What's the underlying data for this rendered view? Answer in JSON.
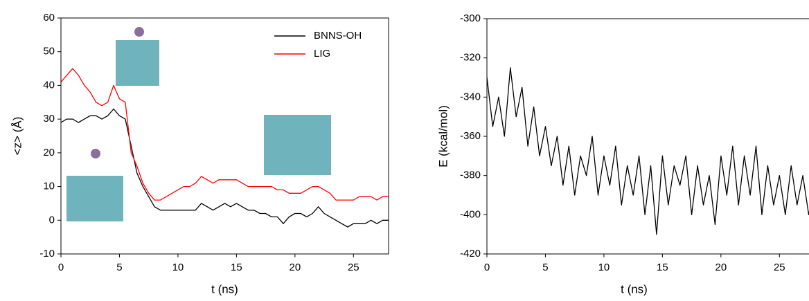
{
  "chart_data": [
    {
      "type": "line",
      "xlabel": "t (ns)",
      "ylabel": "<z> (Å)",
      "xlim": [
        0,
        28
      ],
      "ylim": [
        -10,
        60
      ],
      "xticks": [
        0,
        5,
        10,
        15,
        20,
        25
      ],
      "yticks": [
        -10,
        0,
        10,
        20,
        30,
        40,
        50,
        60
      ],
      "legend": "upper right",
      "x": [
        0,
        0.5,
        1,
        1.5,
        2,
        2.5,
        3,
        3.5,
        4,
        4.5,
        5,
        5.5,
        6,
        6.5,
        7,
        7.5,
        8,
        8.5,
        9,
        9.5,
        10,
        10.5,
        11,
        11.5,
        12,
        12.5,
        13,
        13.5,
        14,
        14.5,
        15,
        15.5,
        16,
        16.5,
        17,
        17.5,
        18,
        18.5,
        19,
        19.5,
        20,
        20.5,
        21,
        21.5,
        22,
        22.5,
        23,
        23.5,
        24,
        24.5,
        25,
        25.5,
        26,
        26.5,
        27,
        27.5,
        28
      ],
      "series": [
        {
          "name": "BNNS-OH",
          "color": "#000000",
          "values": [
            29,
            30,
            30,
            29,
            30,
            31,
            31,
            30,
            31,
            33,
            31,
            30,
            22,
            14,
            10,
            7,
            4,
            3,
            3,
            3,
            3,
            3,
            3,
            3,
            5,
            4,
            3,
            4,
            5,
            4,
            5,
            4,
            3,
            3,
            2,
            2,
            1,
            1,
            -1,
            1,
            2,
            2,
            1,
            2,
            4,
            2,
            1,
            0,
            -1,
            -2,
            -1,
            -1,
            -1,
            0,
            -1,
            0,
            0
          ]
        },
        {
          "name": "LIG",
          "color": "#ff0000",
          "values": [
            41,
            43,
            45,
            43,
            40,
            38,
            35,
            34,
            35,
            40,
            36,
            35,
            20,
            16,
            11,
            8,
            6,
            6,
            7,
            8,
            9,
            10,
            10,
            11,
            13,
            12,
            11,
            12,
            12,
            12,
            12,
            11,
            10,
            10,
            10,
            10,
            10,
            9,
            9,
            8,
            8,
            8,
            9,
            10,
            10,
            9,
            8,
            6,
            6,
            6,
            6,
            7,
            7,
            7,
            6,
            7,
            7
          ]
        }
      ]
    },
    {
      "type": "line",
      "xlabel": "t (ns)",
      "ylabel": "E (kcal/mol)",
      "xlim": [
        0,
        28
      ],
      "ylim": [
        -420,
        -300
      ],
      "xticks": [
        0,
        5,
        10,
        15,
        20,
        25
      ],
      "yticks": [
        -420,
        -400,
        -380,
        -360,
        -340,
        -320,
        -300
      ],
      "color": "#000000",
      "x": [
        0,
        0.5,
        1,
        1.5,
        2,
        2.5,
        3,
        3.5,
        4,
        4.5,
        5,
        5.5,
        6,
        6.5,
        7,
        7.5,
        8,
        8.5,
        9,
        9.5,
        10,
        10.5,
        11,
        11.5,
        12,
        12.5,
        13,
        13.5,
        14,
        14.5,
        15,
        15.5,
        16,
        16.5,
        17,
        17.5,
        18,
        18.5,
        19,
        19.5,
        20,
        20.5,
        21,
        21.5,
        22,
        22.5,
        23,
        23.5,
        24,
        24.5,
        25,
        25.5,
        26,
        26.5,
        27,
        27.5,
        28
      ],
      "values": [
        -330,
        -355,
        -340,
        -360,
        -325,
        -350,
        -335,
        -365,
        -345,
        -370,
        -355,
        -375,
        -360,
        -385,
        -365,
        -390,
        -370,
        -380,
        -360,
        -390,
        -370,
        -385,
        -365,
        -395,
        -375,
        -390,
        -370,
        -400,
        -375,
        -410,
        -370,
        -395,
        -375,
        -385,
        -370,
        -400,
        -375,
        -395,
        -380,
        -405,
        -370,
        -390,
        -365,
        -395,
        -370,
        -390,
        -365,
        -400,
        -375,
        -395,
        -380,
        -400,
        -375,
        -395,
        -380,
        -400,
        -385
      ]
    }
  ]
}
